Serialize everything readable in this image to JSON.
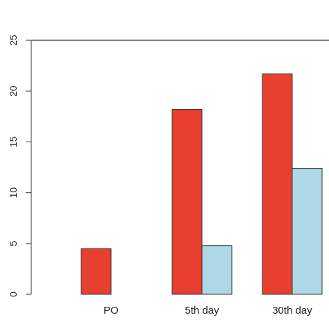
{
  "chart_data": {
    "type": "bar",
    "categories": [
      "PO",
      "5th day",
      "30th day"
    ],
    "series": [
      {
        "color": "#e8402e",
        "values": [
          4.5,
          18.2,
          21.7
        ]
      },
      {
        "color": "#add8e6",
        "values": [
          null,
          4.8,
          12.4
        ]
      }
    ],
    "ylim": [
      0,
      25
    ],
    "yticks": [
      0,
      5,
      10,
      15,
      20,
      25
    ],
    "title": "",
    "xlabel": "",
    "ylabel": "",
    "grid": false,
    "legend": "none"
  },
  "colors": {
    "axis": "#555555",
    "bar_outline": "#333333"
  }
}
